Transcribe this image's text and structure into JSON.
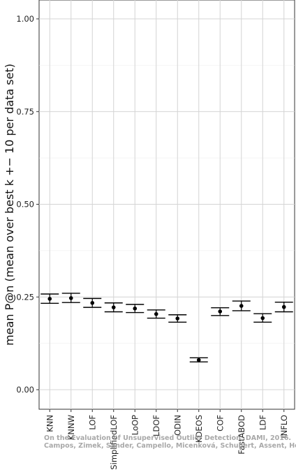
{
  "chart_data": {
    "type": "scatter",
    "ylabel": "mean P@n (mean over best k +− 10 per data set)",
    "ylim": [
      -0.05,
      1.05
    ],
    "yticks": [
      "0.00",
      "0.25",
      "0.50",
      "0.75",
      "1.00"
    ],
    "ytick_values": [
      0,
      0.25,
      0.5,
      0.75,
      1.0
    ],
    "grid": true,
    "categories": [
      "KNN",
      "KNNW",
      "LOF",
      "SimplifiedLOF",
      "LoOP",
      "LDOF",
      "ODIN",
      "KDEOS",
      "COF",
      "FastABOD",
      "LDF",
      "INFLO"
    ],
    "series": [
      {
        "mean": [
          0.245,
          0.247,
          0.234,
          0.222,
          0.219,
          0.204,
          0.192,
          0.08,
          0.211,
          0.226,
          0.193,
          0.223
        ],
        "lower": [
          0.233,
          0.235,
          0.222,
          0.21,
          0.208,
          0.193,
          0.182,
          0.075,
          0.2,
          0.213,
          0.182,
          0.21
        ],
        "upper": [
          0.258,
          0.26,
          0.246,
          0.234,
          0.23,
          0.215,
          0.202,
          0.086,
          0.221,
          0.239,
          0.205,
          0.236
        ]
      }
    ]
  },
  "watermark": {
    "line1": "On the Evaluation of Unsupervised Outlier Detection, DAMI, 2016.",
    "line2": "Campos, Zimek, Sander, Campello, Micenková, Schubert, Assent, Houle"
  }
}
